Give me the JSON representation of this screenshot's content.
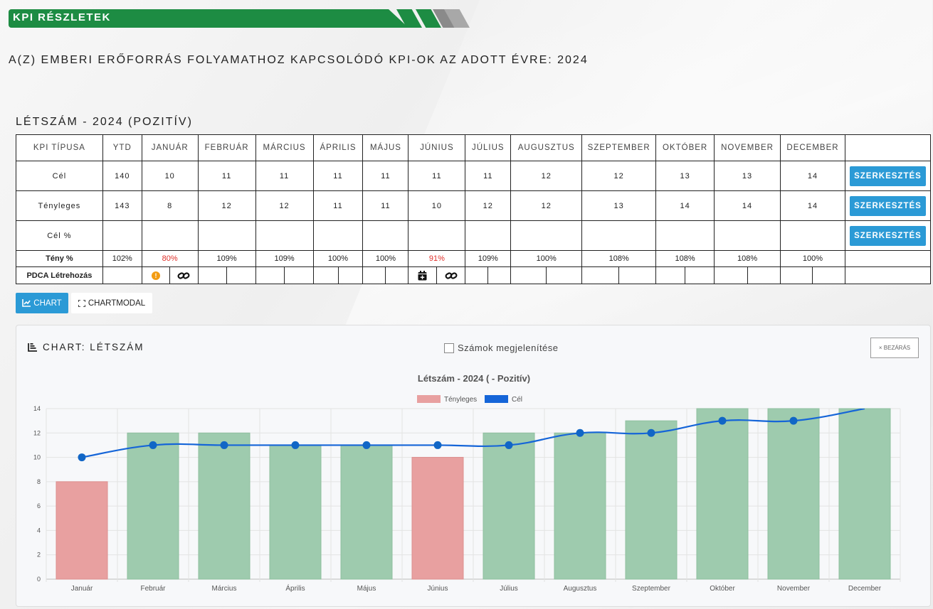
{
  "header": {
    "title": "KPI RÉSZLETEK"
  },
  "page_heading": "A(Z) EMBERI ERŐFORRÁS FOLYAMATHOZ KAPCSOLÓDÓ KPI-OK AZ ADOTT ÉVRE: 2024",
  "section_title": "LÉTSZÁM - 2024 (POZITÍV)",
  "table": {
    "headers": [
      "KPI TÍPUSA",
      "YTD",
      "JANUÁR",
      "FEBRUÁR",
      "MÁRCIUS",
      "ÁPRILIS",
      "MÁJUS",
      "JÚNIUS",
      "JÚLIUS",
      "AUGUSZTUS",
      "SZEPTEMBER",
      "OKTÓBER",
      "NOVEMBER",
      "DECEMBER"
    ],
    "rows": {
      "cel": {
        "label": "Cél",
        "values": [
          "140",
          "10",
          "11",
          "11",
          "11",
          "11",
          "11",
          "11",
          "12",
          "12",
          "13",
          "13",
          "14"
        ]
      },
      "teny": {
        "label": "Tényleges",
        "values": [
          "143",
          "8",
          "12",
          "12",
          "11",
          "11",
          "10",
          "12",
          "12",
          "13",
          "14",
          "14",
          "14"
        ]
      },
      "celp": {
        "label": "Cél %",
        "values": [
          "",
          "",
          "",
          "",
          "",
          "",
          "",
          "",
          "",
          "",
          "",
          "",
          ""
        ]
      },
      "tenyp": {
        "label": "Tény %",
        "values": [
          "102%",
          "80%",
          "109%",
          "109%",
          "100%",
          "100%",
          "91%",
          "109%",
          "100%",
          "108%",
          "108%",
          "108%",
          "100%"
        ]
      },
      "pdca": {
        "label": "PDCA Létrehozás"
      }
    },
    "edit_label": "SZERKESZTÉS"
  },
  "buttons": {
    "chart": "CHART",
    "chartmodal": "CHARTMODAL"
  },
  "chart_card": {
    "title": "CHART: LÉTSZÁM",
    "show_numbers_label": "Számok megjelenítése",
    "close_label": "× BEZÁRÁS"
  },
  "chart_data": {
    "type": "bar",
    "title": "Létszám - 2024 ( - Pozitív)",
    "categories": [
      "Január",
      "Február",
      "Március",
      "Április",
      "Május",
      "Június",
      "Július",
      "Augusztus",
      "Szeptember",
      "Október",
      "November",
      "December"
    ],
    "series": [
      {
        "name": "Tényleges",
        "type": "bar",
        "values": [
          8,
          12,
          12,
          11,
          11,
          10,
          12,
          12,
          13,
          14,
          14,
          14
        ],
        "color_below": "#e8a0a0",
        "color_ok": "#9ecbae"
      },
      {
        "name": "Cél",
        "type": "line",
        "values": [
          10,
          11,
          11,
          11,
          11,
          11,
          11,
          12,
          12,
          13,
          13,
          14
        ],
        "color": "#1565d8"
      }
    ],
    "ylim": [
      0,
      14
    ],
    "yticks": [
      0,
      2,
      4,
      6,
      8,
      10,
      12,
      14
    ],
    "grid": true,
    "legend": "top-center"
  }
}
